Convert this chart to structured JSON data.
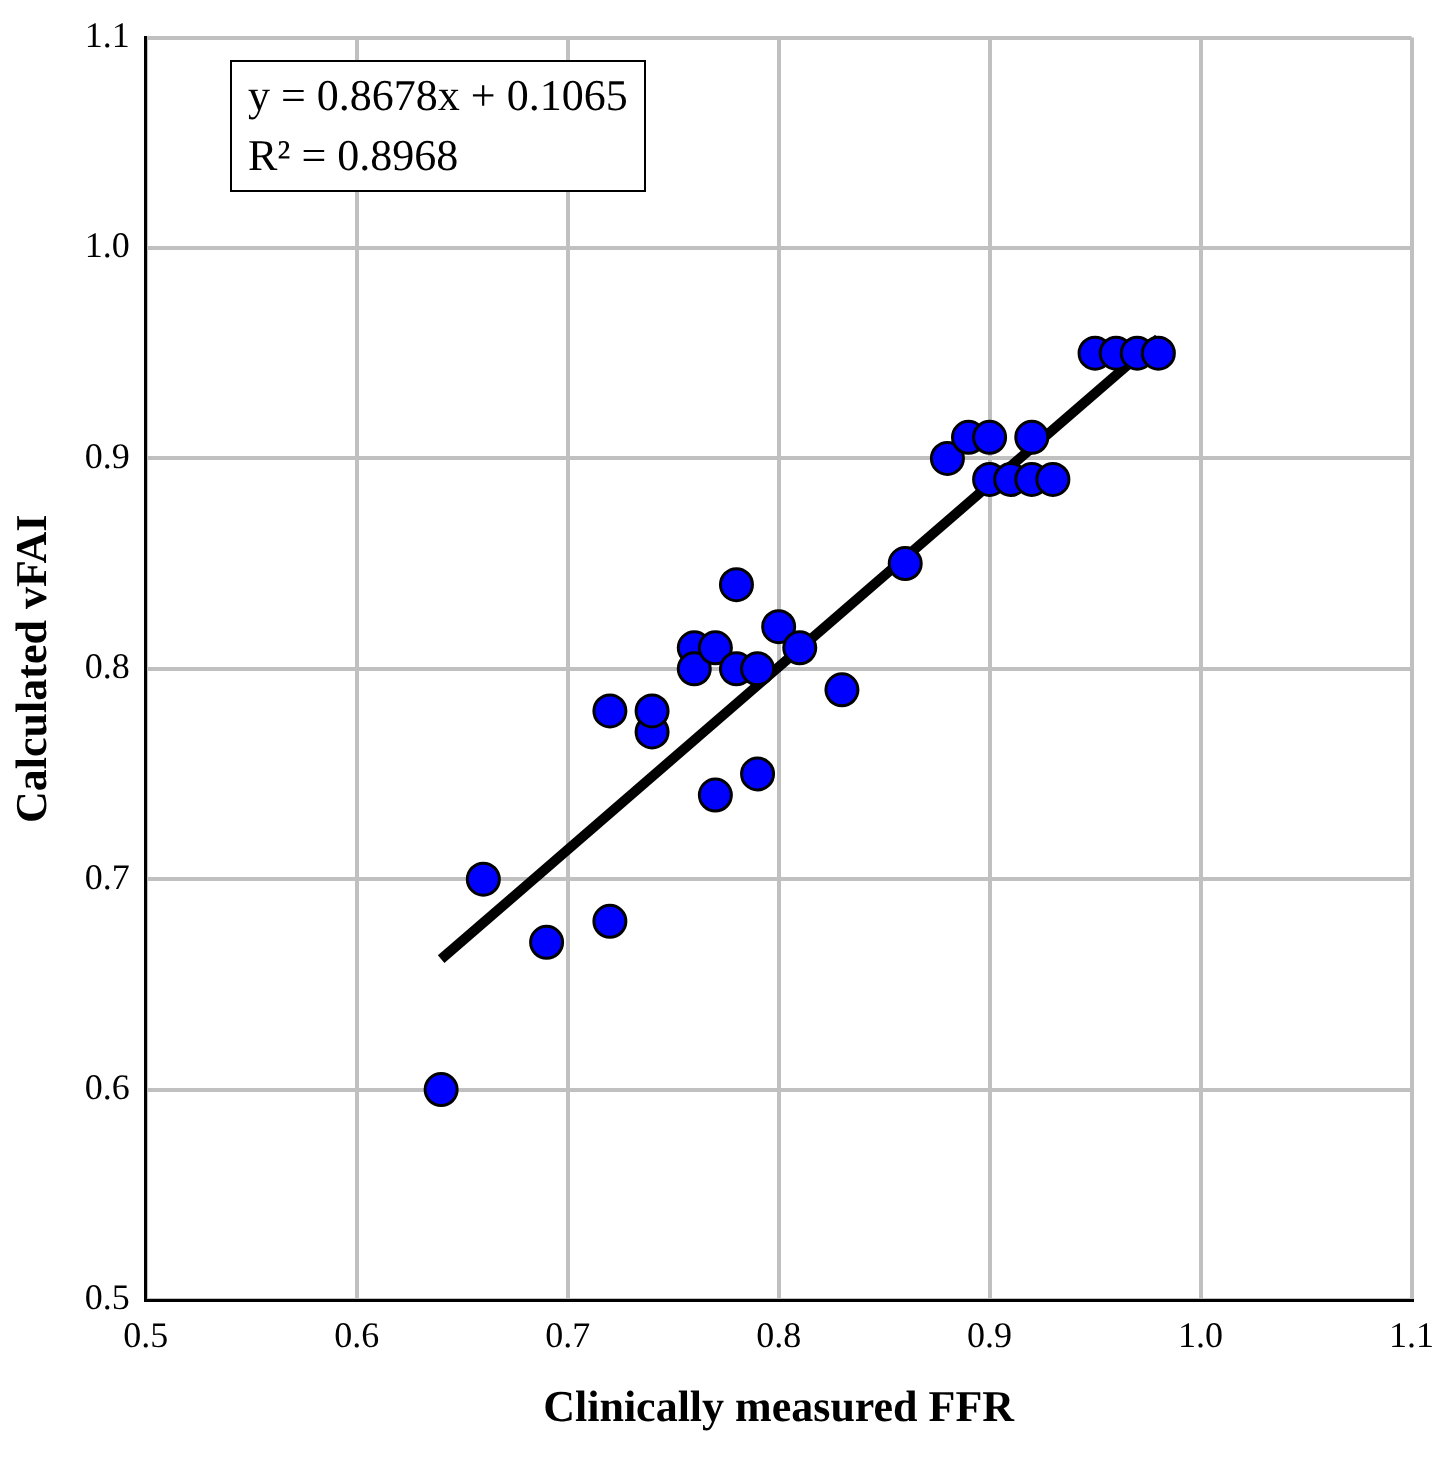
{
  "chart_data": {
    "type": "scatter",
    "xlabel": "Clinically measured FFR",
    "ylabel": "Calculated vFAI",
    "xlim": [
      0.5,
      1.1
    ],
    "xticks": [
      {
        "value": 0.5,
        "label": "0.5"
      },
      {
        "value": 0.6,
        "label": "0.6"
      },
      {
        "value": 0.7,
        "label": "0.7"
      },
      {
        "value": 0.8,
        "label": "0.8"
      },
      {
        "value": 0.9,
        "label": "0.9"
      },
      {
        "value": 1.0,
        "label": "1.0"
      },
      {
        "value": 1.1,
        "label": "1.1"
      }
    ],
    "ylim": [
      0.5,
      1.1
    ],
    "yticks": [
      {
        "value": 0.5,
        "label": "0.5"
      },
      {
        "value": 0.6,
        "label": "0.6"
      },
      {
        "value": 0.7,
        "label": "0.7"
      },
      {
        "value": 0.8,
        "label": "0.8"
      },
      {
        "value": 0.9,
        "label": "0.9"
      },
      {
        "value": 1.0,
        "label": "1.0"
      },
      {
        "value": 1.1,
        "label": "1.1"
      }
    ],
    "grid": true,
    "marker": "circle",
    "annotations": [
      "y = 0.8678x + 0.1065",
      "R² = 0.8968"
    ],
    "series": [
      {
        "color": "#0000ff",
        "x": [
          0.64,
          0.66,
          0.69,
          0.72,
          0.72,
          0.74,
          0.74,
          0.76,
          0.76,
          0.77,
          0.77,
          0.78,
          0.78,
          0.79,
          0.79,
          0.8,
          0.81,
          0.83,
          0.86,
          0.88,
          0.89,
          0.9,
          0.9,
          0.91,
          0.92,
          0.92,
          0.93,
          0.95,
          0.96,
          0.97,
          0.98
        ],
        "values": [
          0.6,
          0.7,
          0.67,
          0.68,
          0.78,
          0.77,
          0.78,
          0.81,
          0.8,
          0.81,
          0.74,
          0.84,
          0.8,
          0.8,
          0.75,
          0.82,
          0.81,
          0.79,
          0.85,
          0.9,
          0.91,
          0.91,
          0.89,
          0.89,
          0.91,
          0.89,
          0.89,
          0.95,
          0.95,
          0.95,
          0.95
        ]
      },
      {
        "type": "line",
        "marker": "none",
        "color": "#000000",
        "x": [
          0.64,
          0.98
        ],
        "values": [
          0.662,
          0.957
        ]
      }
    ]
  }
}
